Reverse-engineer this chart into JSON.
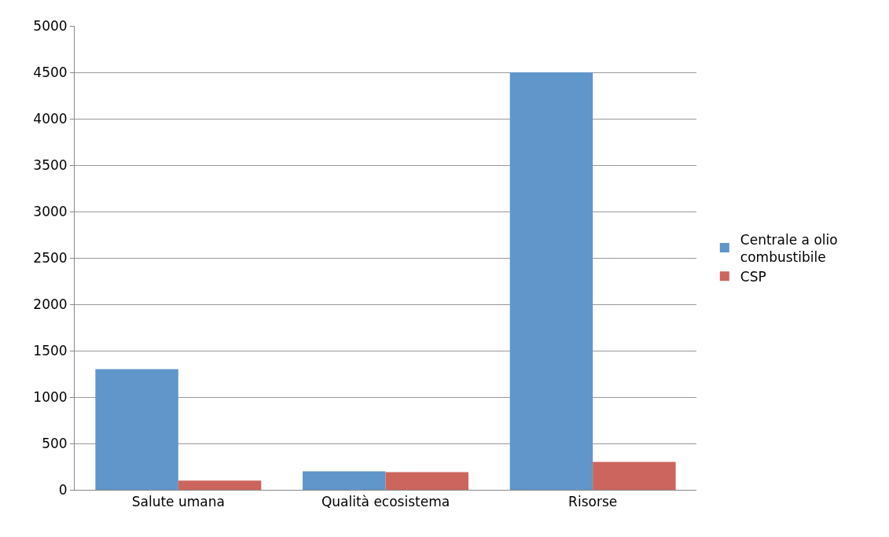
{
  "chart_data": {
    "type": "bar",
    "categories": [
      "Salute umana",
      "Qualità ecosistema",
      "Risorse"
    ],
    "series": [
      {
        "name": "Centrale a olio combustibile",
        "color": "#6096c9",
        "values": [
          1300,
          200,
          4500
        ]
      },
      {
        "name": "CSP",
        "color": "#cc655e",
        "values": [
          100,
          190,
          300
        ]
      }
    ],
    "ylim": [
      0,
      5000
    ],
    "yticks": [
      0,
      500,
      1000,
      1500,
      2000,
      2500,
      3000,
      3500,
      4000,
      4500,
      5000
    ],
    "grid": "y",
    "legend": "right"
  }
}
